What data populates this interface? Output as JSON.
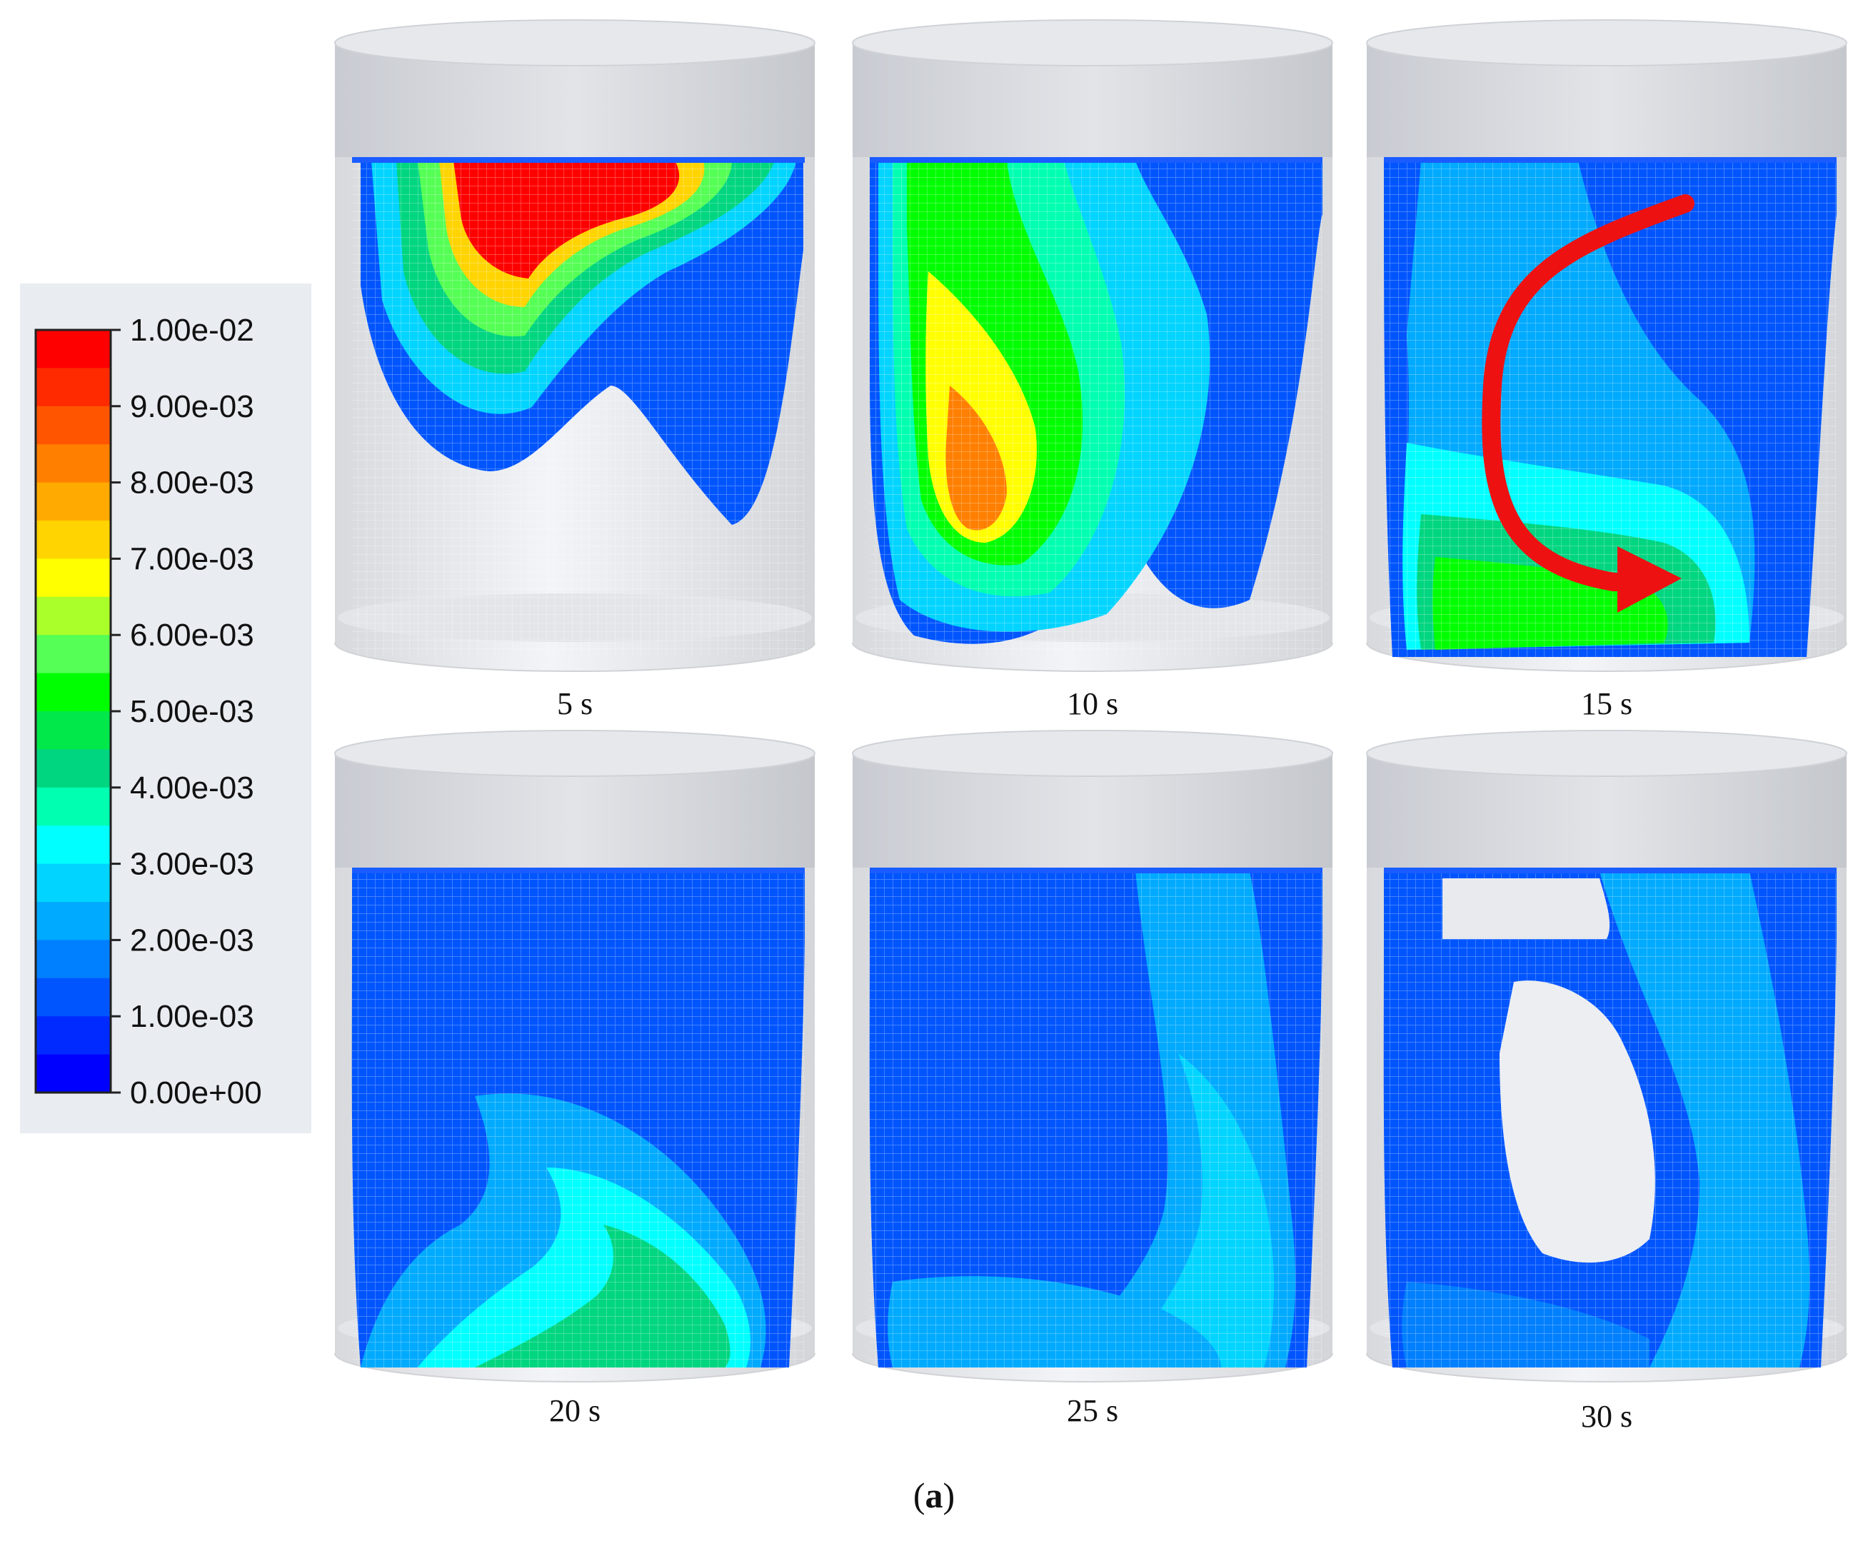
{
  "colorbar": {
    "ticks": [
      "1.00e-02",
      "9.00e-03",
      "8.00e-03",
      "7.00e-03",
      "6.00e-03",
      "5.00e-03",
      "4.00e-03",
      "3.00e-03",
      "2.00e-03",
      "1.00e-03",
      "0.00e+00"
    ],
    "max": 0.01,
    "min": 0.0,
    "colors": [
      "#ff0000",
      "#ff2a00",
      "#ff5500",
      "#ff7f00",
      "#ffaa00",
      "#ffd400",
      "#ffff00",
      "#aaff2a",
      "#55ff55",
      "#00ff00",
      "#00e84a",
      "#00d580",
      "#00ffb0",
      "#00ffff",
      "#00d4ff",
      "#00aaff",
      "#007fff",
      "#0055ff",
      "#002aff",
      "#0000ff"
    ]
  },
  "panels": [
    {
      "caption": "5 s"
    },
    {
      "caption": "10 s"
    },
    {
      "caption": "15 s"
    },
    {
      "caption": "20 s"
    },
    {
      "caption": "25 s"
    },
    {
      "caption": "30 s"
    }
  ],
  "figure_label": {
    "open": "(",
    "letter": "a",
    "close": ")"
  },
  "annotation_color": "#ee1111"
}
